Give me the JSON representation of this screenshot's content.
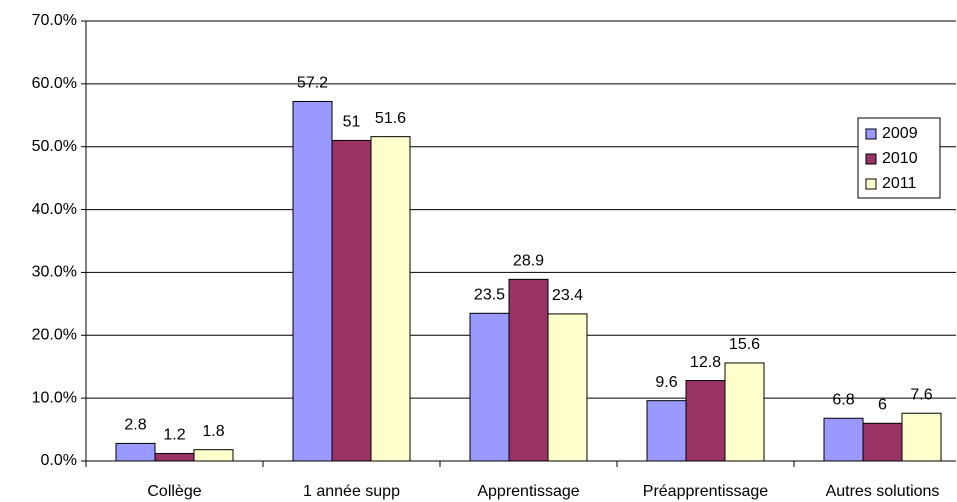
{
  "chart_data": {
    "type": "bar",
    "categories": [
      "Collège",
      "1 année supp",
      "Apprentissage",
      "Préapprentissage",
      "Autres solutions"
    ],
    "series": [
      {
        "name": "2009",
        "color": "#9999ff",
        "values": [
          2.8,
          57.2,
          23.5,
          9.6,
          6.8
        ]
      },
      {
        "name": "2010",
        "color": "#993366",
        "values": [
          1.2,
          51,
          28.9,
          12.8,
          6
        ]
      },
      {
        "name": "2011",
        "color": "#ffffcc",
        "values": [
          1.8,
          51.6,
          23.4,
          15.6,
          7.6
        ]
      }
    ],
    "ylim": [
      0,
      70
    ],
    "yticks": [
      {
        "value": 0,
        "label": "0.0%"
      },
      {
        "value": 10,
        "label": "10.0%"
      },
      {
        "value": 20,
        "label": "20.0%"
      },
      {
        "value": 30,
        "label": "30.0%"
      },
      {
        "value": 40,
        "label": "40.0%"
      },
      {
        "value": 50,
        "label": "50.0%"
      },
      {
        "value": 60,
        "label": "60.0%"
      },
      {
        "value": 70,
        "label": "70.0%"
      }
    ],
    "grid": true,
    "legend": "right"
  }
}
